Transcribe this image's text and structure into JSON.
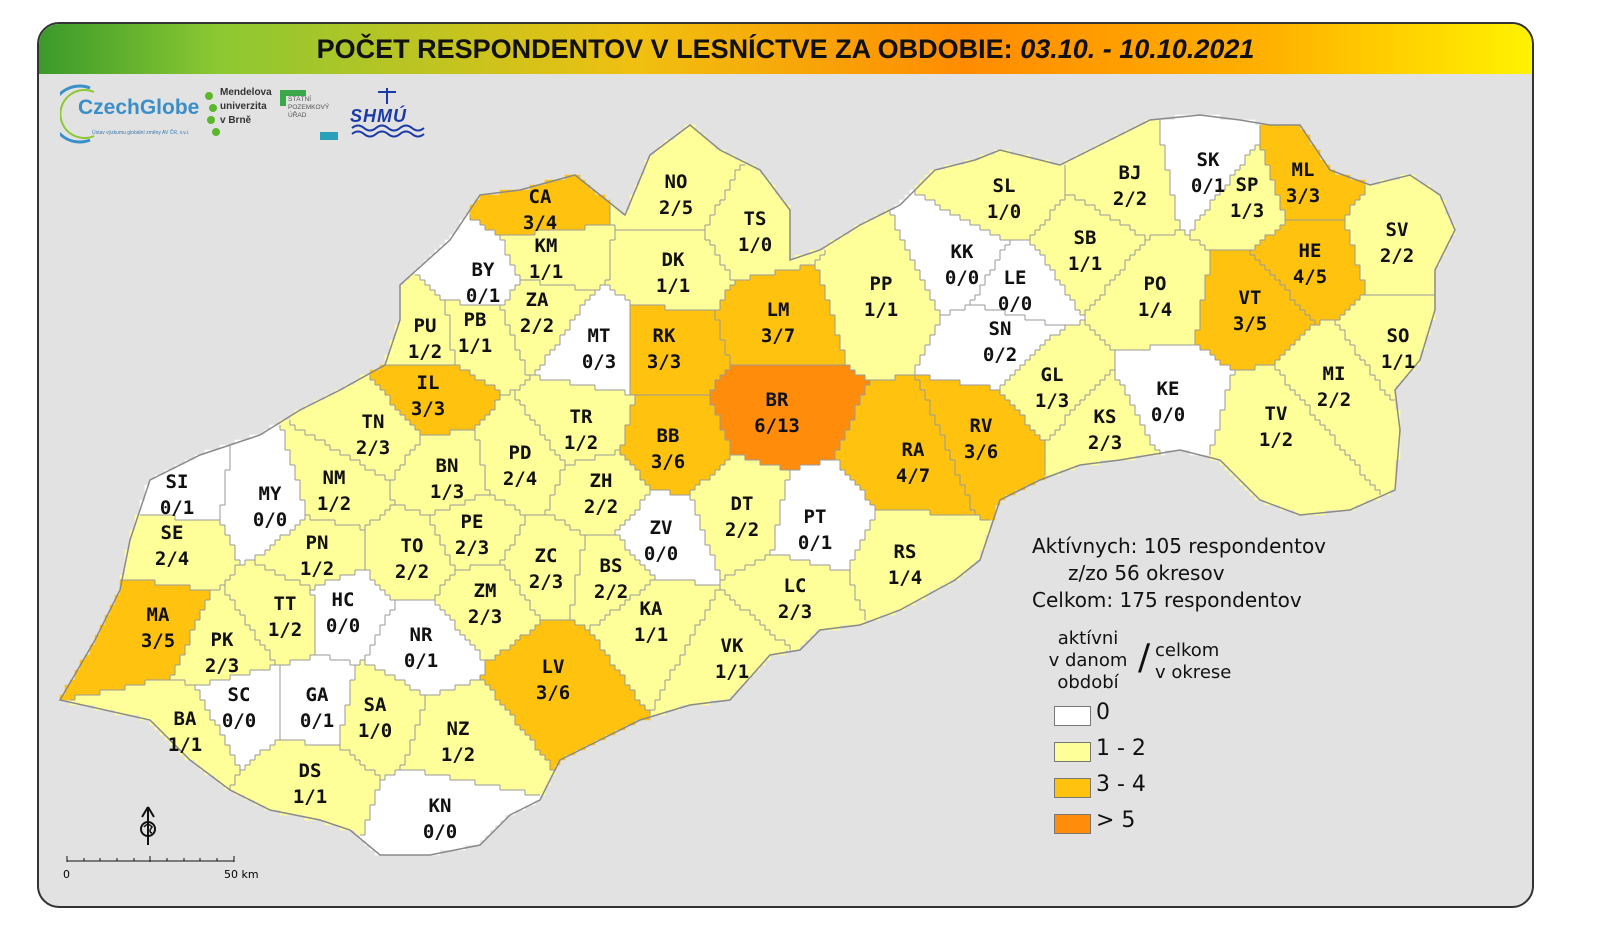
{
  "title": {
    "prefix": "POČET RESPONDENTOV V LESNÍCTVE ZA OBDOBIE: ",
    "dates": "03.10. - 10.10.2021"
  },
  "logos": {
    "czechglobe": "CzechGlobe",
    "czechglobe_sub": "Ústav výzkumu globální změny AV ČR, v.v.i.",
    "mendel": [
      "Mendelova",
      "univerzita",
      "v Brně"
    ],
    "spu": [
      "STÁTNÍ",
      "POZEMKOVÝ",
      "ÚŘAD"
    ],
    "shmu": "SHMÚ"
  },
  "colors": {
    "c0": "#ffffff",
    "c12": "#ffff99",
    "c34": "#ffc20e",
    "c5": "#ff8c0a",
    "border": "#9a9a9a"
  },
  "districts": [
    {
      "code": "CA",
      "value": "3/4",
      "cls": "c34"
    },
    {
      "code": "NO",
      "value": "2/5",
      "cls": "c12"
    },
    {
      "code": "TS",
      "value": "1/0",
      "cls": "c12"
    },
    {
      "code": "KM",
      "value": "1/1",
      "cls": "c12"
    },
    {
      "code": "BY",
      "value": "0/1",
      "cls": "c0"
    },
    {
      "code": "ZA",
      "value": "2/2",
      "cls": "c12"
    },
    {
      "code": "DK",
      "value": "1/1",
      "cls": "c12"
    },
    {
      "code": "PU",
      "value": "1/2",
      "cls": "c12"
    },
    {
      "code": "PB",
      "value": "1/1",
      "cls": "c12"
    },
    {
      "code": "MT",
      "value": "0/3",
      "cls": "c0"
    },
    {
      "code": "RK",
      "value": "3/3",
      "cls": "c34"
    },
    {
      "code": "LM",
      "value": "3/7",
      "cls": "c34"
    },
    {
      "code": "PP",
      "value": "1/1",
      "cls": "c12"
    },
    {
      "code": "SL",
      "value": "1/0",
      "cls": "c12"
    },
    {
      "code": "KK",
      "value": "0/0",
      "cls": "c0"
    },
    {
      "code": "LE",
      "value": "0/0",
      "cls": "c0"
    },
    {
      "code": "SN",
      "value": "0/2",
      "cls": "c0"
    },
    {
      "code": "SB",
      "value": "1/1",
      "cls": "c12"
    },
    {
      "code": "BJ",
      "value": "2/2",
      "cls": "c12"
    },
    {
      "code": "SK",
      "value": "0/1",
      "cls": "c0"
    },
    {
      "code": "SP",
      "value": "1/3",
      "cls": "c12"
    },
    {
      "code": "ML",
      "value": "3/3",
      "cls": "c34"
    },
    {
      "code": "SV",
      "value": "2/2",
      "cls": "c12"
    },
    {
      "code": "HE",
      "value": "4/5",
      "cls": "c34"
    },
    {
      "code": "PO",
      "value": "1/4",
      "cls": "c12"
    },
    {
      "code": "VT",
      "value": "3/5",
      "cls": "c34"
    },
    {
      "code": "SO",
      "value": "1/1",
      "cls": "c12"
    },
    {
      "code": "MI",
      "value": "2/2",
      "cls": "c12"
    },
    {
      "code": "KE",
      "value": "0/0",
      "cls": "c0"
    },
    {
      "code": "GL",
      "value": "1/3",
      "cls": "c12"
    },
    {
      "code": "KS",
      "value": "2/3",
      "cls": "c12"
    },
    {
      "code": "TV",
      "value": "1/2",
      "cls": "c12"
    },
    {
      "code": "IL",
      "value": "3/3",
      "cls": "c34"
    },
    {
      "code": "TN",
      "value": "2/3",
      "cls": "c12"
    },
    {
      "code": "BR",
      "value": "6/13",
      "cls": "c5"
    },
    {
      "code": "TR",
      "value": "1/2",
      "cls": "c12"
    },
    {
      "code": "BB",
      "value": "3/6",
      "cls": "c34"
    },
    {
      "code": "RV",
      "value": "3/6",
      "cls": "c34"
    },
    {
      "code": "RA",
      "value": "4/7",
      "cls": "c34"
    },
    {
      "code": "SI",
      "value": "0/1",
      "cls": "c0"
    },
    {
      "code": "MY",
      "value": "0/0",
      "cls": "c0"
    },
    {
      "code": "NM",
      "value": "1/2",
      "cls": "c12"
    },
    {
      "code": "BN",
      "value": "1/3",
      "cls": "c12"
    },
    {
      "code": "PD",
      "value": "2/4",
      "cls": "c12"
    },
    {
      "code": "ZH",
      "value": "2/2",
      "cls": "c12"
    },
    {
      "code": "SE",
      "value": "2/4",
      "cls": "c12"
    },
    {
      "code": "PE",
      "value": "2/3",
      "cls": "c12"
    },
    {
      "code": "ZV",
      "value": "0/0",
      "cls": "c0"
    },
    {
      "code": "DT",
      "value": "2/2",
      "cls": "c12"
    },
    {
      "code": "PT",
      "value": "0/1",
      "cls": "c0"
    },
    {
      "code": "PN",
      "value": "1/2",
      "cls": "c12"
    },
    {
      "code": "TO",
      "value": "2/2",
      "cls": "c12"
    },
    {
      "code": "ZC",
      "value": "2/3",
      "cls": "c12"
    },
    {
      "code": "BS",
      "value": "2/2",
      "cls": "c12"
    },
    {
      "code": "RS",
      "value": "1/4",
      "cls": "c12"
    },
    {
      "code": "MA",
      "value": "3/5",
      "cls": "c34"
    },
    {
      "code": "TT",
      "value": "1/2",
      "cls": "c12"
    },
    {
      "code": "HC",
      "value": "0/0",
      "cls": "c0"
    },
    {
      "code": "ZM",
      "value": "2/3",
      "cls": "c12"
    },
    {
      "code": "KA",
      "value": "1/1",
      "cls": "c12"
    },
    {
      "code": "LC",
      "value": "2/3",
      "cls": "c12"
    },
    {
      "code": "NR",
      "value": "0/1",
      "cls": "c0"
    },
    {
      "code": "VK",
      "value": "1/1",
      "cls": "c12"
    },
    {
      "code": "PK",
      "value": "2/3",
      "cls": "c12"
    },
    {
      "code": "LV",
      "value": "3/6",
      "cls": "c34"
    },
    {
      "code": "SC",
      "value": "0/0",
      "cls": "c0"
    },
    {
      "code": "GA",
      "value": "0/1",
      "cls": "c0"
    },
    {
      "code": "SA",
      "value": "1/0",
      "cls": "c12"
    },
    {
      "code": "BA",
      "value": "1/1",
      "cls": "c12"
    },
    {
      "code": "NZ",
      "value": "1/2",
      "cls": "c12"
    },
    {
      "code": "DS",
      "value": "1/1",
      "cls": "c12"
    },
    {
      "code": "KN",
      "value": "0/0",
      "cls": "c0"
    }
  ],
  "stats": {
    "active": "Aktívnych: 105 respondentov",
    "districts": "z/zo 56 okresov",
    "total": "Celkom: 175 respondentov"
  },
  "legend": {
    "left": [
      "aktívni",
      "v danom",
      "období"
    ],
    "slash": "/",
    "right": [
      "celkom",
      "v okrese"
    ],
    "items": [
      {
        "label": "0",
        "color": "#ffffff"
      },
      {
        "label": "1 - 2",
        "color": "#ffff99"
      },
      {
        "label": "3 - 4",
        "color": "#ffc20e"
      },
      {
        "label": "> 5",
        "color": "#ff8c0a"
      }
    ]
  },
  "scale": {
    "start": "0",
    "end": "50 km"
  },
  "north_icon": "north-arrow-icon"
}
